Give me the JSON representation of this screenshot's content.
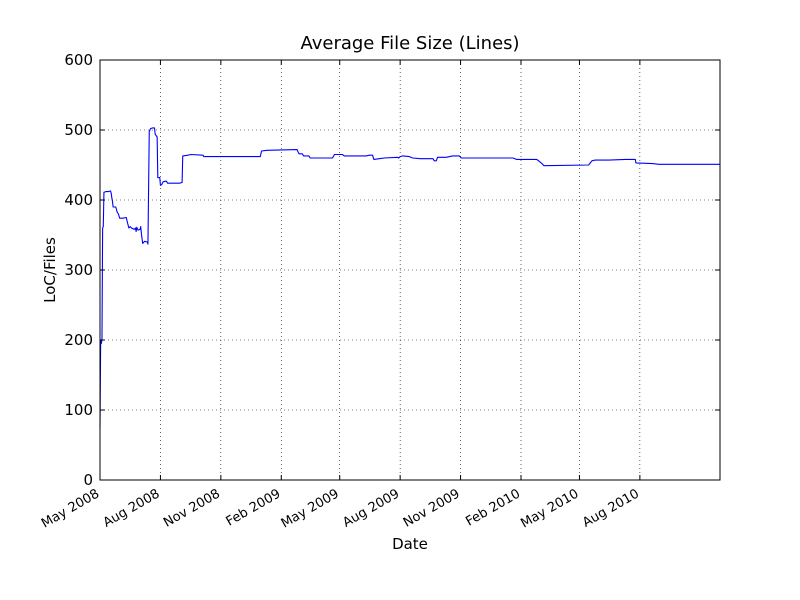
{
  "chart_data": {
    "type": "line",
    "title": "Average File Size (Lines)",
    "xlabel": "Date",
    "ylabel": "LoC/Files",
    "xlim": [
      "2008-05-01",
      "2010-12-01"
    ],
    "ylim": [
      0,
      600
    ],
    "yticks": [
      0,
      100,
      200,
      300,
      400,
      500,
      600
    ],
    "xticks": [
      {
        "date": "2008-05-01",
        "label": "May 2008"
      },
      {
        "date": "2008-08-01",
        "label": "Aug 2008"
      },
      {
        "date": "2008-11-01",
        "label": "Nov 2008"
      },
      {
        "date": "2009-02-01",
        "label": "Feb 2009"
      },
      {
        "date": "2009-05-01",
        "label": "May 2009"
      },
      {
        "date": "2009-08-01",
        "label": "Aug 2009"
      },
      {
        "date": "2009-11-01",
        "label": "Nov 2009"
      },
      {
        "date": "2010-02-01",
        "label": "Feb 2010"
      },
      {
        "date": "2010-05-01",
        "label": "May 2010"
      },
      {
        "date": "2010-08-01",
        "label": "Aug 2010"
      }
    ],
    "grid": true,
    "line_color": "#0000ff",
    "series": [
      {
        "points": [
          [
            "2008-05-01",
            75
          ],
          [
            "2008-05-02",
            200
          ],
          [
            "2008-05-03",
            195
          ],
          [
            "2008-05-04",
            200
          ],
          [
            "2008-05-05",
            360
          ],
          [
            "2008-05-06",
            362
          ],
          [
            "2008-05-07",
            411
          ],
          [
            "2008-05-10",
            412
          ],
          [
            "2008-05-14",
            412
          ],
          [
            "2008-05-17",
            413
          ],
          [
            "2008-05-18",
            410
          ],
          [
            "2008-05-19",
            403
          ],
          [
            "2008-05-20",
            398
          ],
          [
            "2008-05-21",
            390
          ],
          [
            "2008-05-25",
            390
          ],
          [
            "2008-05-27",
            383
          ],
          [
            "2008-05-29",
            380
          ],
          [
            "2008-05-31",
            374
          ],
          [
            "2008-06-05",
            374
          ],
          [
            "2008-06-10",
            375
          ],
          [
            "2008-06-12",
            367
          ],
          [
            "2008-06-14",
            360
          ],
          [
            "2008-06-16",
            362
          ],
          [
            "2008-06-18",
            360
          ],
          [
            "2008-06-22",
            358
          ],
          [
            "2008-06-24",
            360
          ],
          [
            "2008-06-25",
            355
          ],
          [
            "2008-06-26",
            361
          ],
          [
            "2008-06-28",
            357
          ],
          [
            "2008-07-01",
            358
          ],
          [
            "2008-07-02",
            362
          ],
          [
            "2008-07-03",
            352
          ],
          [
            "2008-07-05",
            338
          ],
          [
            "2008-07-08",
            341
          ],
          [
            "2008-07-12",
            340
          ],
          [
            "2008-07-13",
            337
          ],
          [
            "2008-07-15",
            498
          ],
          [
            "2008-07-17",
            502
          ],
          [
            "2008-07-20",
            503
          ],
          [
            "2008-07-23",
            503
          ],
          [
            "2008-07-24",
            494
          ],
          [
            "2008-07-27",
            490
          ],
          [
            "2008-07-28",
            432
          ],
          [
            "2008-07-31",
            432
          ],
          [
            "2008-08-01",
            421
          ],
          [
            "2008-08-03",
            422
          ],
          [
            "2008-08-05",
            426
          ],
          [
            "2008-08-10",
            427
          ],
          [
            "2008-08-12",
            424
          ],
          [
            "2008-08-30",
            424
          ],
          [
            "2008-09-03",
            425
          ],
          [
            "2008-09-04",
            463
          ],
          [
            "2008-09-12",
            464
          ],
          [
            "2008-09-16",
            465
          ],
          [
            "2008-10-05",
            464
          ],
          [
            "2008-10-06",
            462
          ],
          [
            "2008-12-31",
            462
          ],
          [
            "2009-01-02",
            470
          ],
          [
            "2009-01-10",
            471
          ],
          [
            "2009-02-25",
            472
          ],
          [
            "2009-02-28",
            466
          ],
          [
            "2009-03-05",
            466
          ],
          [
            "2009-03-07",
            463
          ],
          [
            "2009-03-15",
            463
          ],
          [
            "2009-03-17",
            460
          ],
          [
            "2009-04-20",
            460
          ],
          [
            "2009-04-23",
            465
          ],
          [
            "2009-05-05",
            465
          ],
          [
            "2009-05-08",
            463
          ],
          [
            "2009-06-10",
            463
          ],
          [
            "2009-06-15",
            464
          ],
          [
            "2009-06-20",
            464
          ],
          [
            "2009-06-22",
            458
          ],
          [
            "2009-07-08",
            460
          ],
          [
            "2009-07-28",
            461
          ],
          [
            "2009-07-30",
            460
          ],
          [
            "2009-08-01",
            462
          ],
          [
            "2009-08-05",
            463
          ],
          [
            "2009-08-15",
            462
          ],
          [
            "2009-08-20",
            460
          ],
          [
            "2009-09-01",
            459
          ],
          [
            "2009-09-20",
            459
          ],
          [
            "2009-09-22",
            456
          ],
          [
            "2009-09-25",
            456
          ],
          [
            "2009-09-27",
            461
          ],
          [
            "2009-10-10",
            461
          ],
          [
            "2009-10-20",
            463
          ],
          [
            "2009-10-30",
            463
          ],
          [
            "2009-11-02",
            460
          ],
          [
            "2010-01-20",
            460
          ],
          [
            "2010-01-25",
            458
          ],
          [
            "2010-02-25",
            458
          ],
          [
            "2010-03-05",
            452
          ],
          [
            "2010-03-08",
            449
          ],
          [
            "2010-05-15",
            450
          ],
          [
            "2010-05-20",
            456
          ],
          [
            "2010-05-25",
            457
          ],
          [
            "2010-06-15",
            457
          ],
          [
            "2010-07-10",
            458
          ],
          [
            "2010-07-25",
            458
          ],
          [
            "2010-07-26",
            453
          ],
          [
            "2010-08-20",
            452
          ],
          [
            "2010-08-30",
            451
          ],
          [
            "2010-12-01",
            451
          ]
        ]
      }
    ]
  }
}
